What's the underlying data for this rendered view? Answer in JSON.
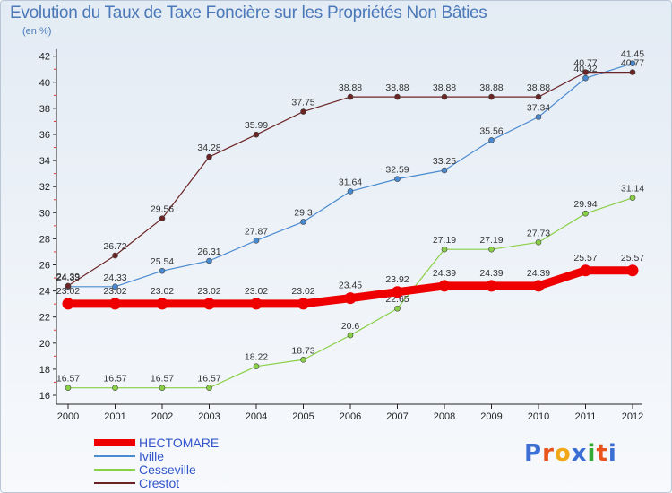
{
  "title": "Evolution du Taux de Taxe Foncière sur les Propriétés Non Bâties",
  "unit_label": "(en %)",
  "logo": {
    "text": "Proxiti",
    "letter_colors": [
      "#3b6fd4",
      "#e8541c",
      "#f0a818",
      "#3b6fd4",
      "#33aa33",
      "#e8541c",
      "#3b6fd4"
    ]
  },
  "chart_data": {
    "type": "line",
    "x": [
      "2000",
      "2001",
      "2002",
      "2003",
      "2004",
      "2005",
      "2006",
      "2007",
      "2008",
      "2009",
      "2010",
      "2011",
      "2012"
    ],
    "ylim": [
      16,
      42
    ],
    "yticks": [
      16,
      18,
      20,
      22,
      24,
      26,
      28,
      30,
      32,
      34,
      36,
      38,
      40,
      42
    ],
    "grid": false,
    "legend_position": "bottom-left",
    "series": [
      {
        "name": "Cesseville",
        "color": "#8ad046",
        "values": [
          16.57,
          16.57,
          16.57,
          16.57,
          18.22,
          18.73,
          20.6,
          22.65,
          27.19,
          27.19,
          27.73,
          29.94,
          31.14
        ],
        "labels": [
          "16.57",
          "16.57",
          "16.57",
          "16.57",
          "18.22",
          "18.73",
          "20.6",
          "22.65",
          "27.19",
          "27.19",
          "27.73",
          "29.94",
          "31.14"
        ]
      },
      {
        "name": "Iville",
        "color": "#4a8ad0",
        "values": [
          24.33,
          24.33,
          25.54,
          26.31,
          27.87,
          29.3,
          31.64,
          32.59,
          33.25,
          35.56,
          37.34,
          40.32,
          41.45
        ],
        "labels": [
          "24.33",
          "24.33",
          "25.54",
          "26.31",
          "27.87",
          "29.3",
          "31.64",
          "32.59",
          "33.25",
          "35.56",
          "37.34",
          "40.32",
          "41.45"
        ]
      },
      {
        "name": "Crestot",
        "color": "#6b2424",
        "values": [
          24.39,
          26.72,
          29.56,
          34.28,
          35.99,
          37.75,
          38.88,
          38.88,
          38.88,
          38.88,
          38.88,
          40.77,
          40.77
        ],
        "labels": [
          "24.39",
          "26.72",
          "29.56",
          "34.28",
          "35.99",
          "37.75",
          "38.88",
          "38.88",
          "38.88",
          "38.88",
          "38.88",
          "40.77",
          "40.77"
        ]
      },
      {
        "name": "HECTOMARE",
        "color": "#ee0000",
        "values": [
          23.02,
          23.02,
          23.02,
          23.02,
          23.02,
          23.02,
          23.45,
          23.92,
          24.39,
          24.39,
          24.39,
          25.57,
          25.57
        ],
        "labels": [
          "23.02",
          "23.02",
          "23.02",
          "23.02",
          "23.02",
          "23.02",
          "23.45",
          "23.92",
          "24.39",
          "24.39",
          "24.39",
          "25.57",
          "25.57"
        ]
      }
    ],
    "legend": [
      {
        "name": "HECTOMARE",
        "color": "#ee0000",
        "text_color": "#3355cc"
      },
      {
        "name": "Iville",
        "color": "#4a8ad0",
        "text_color": "#3355cc"
      },
      {
        "name": "Cesseville",
        "color": "#8ad046",
        "text_color": "#3355cc"
      },
      {
        "name": "Crestot",
        "color": "#6b2424",
        "text_color": "#3355cc"
      }
    ]
  }
}
